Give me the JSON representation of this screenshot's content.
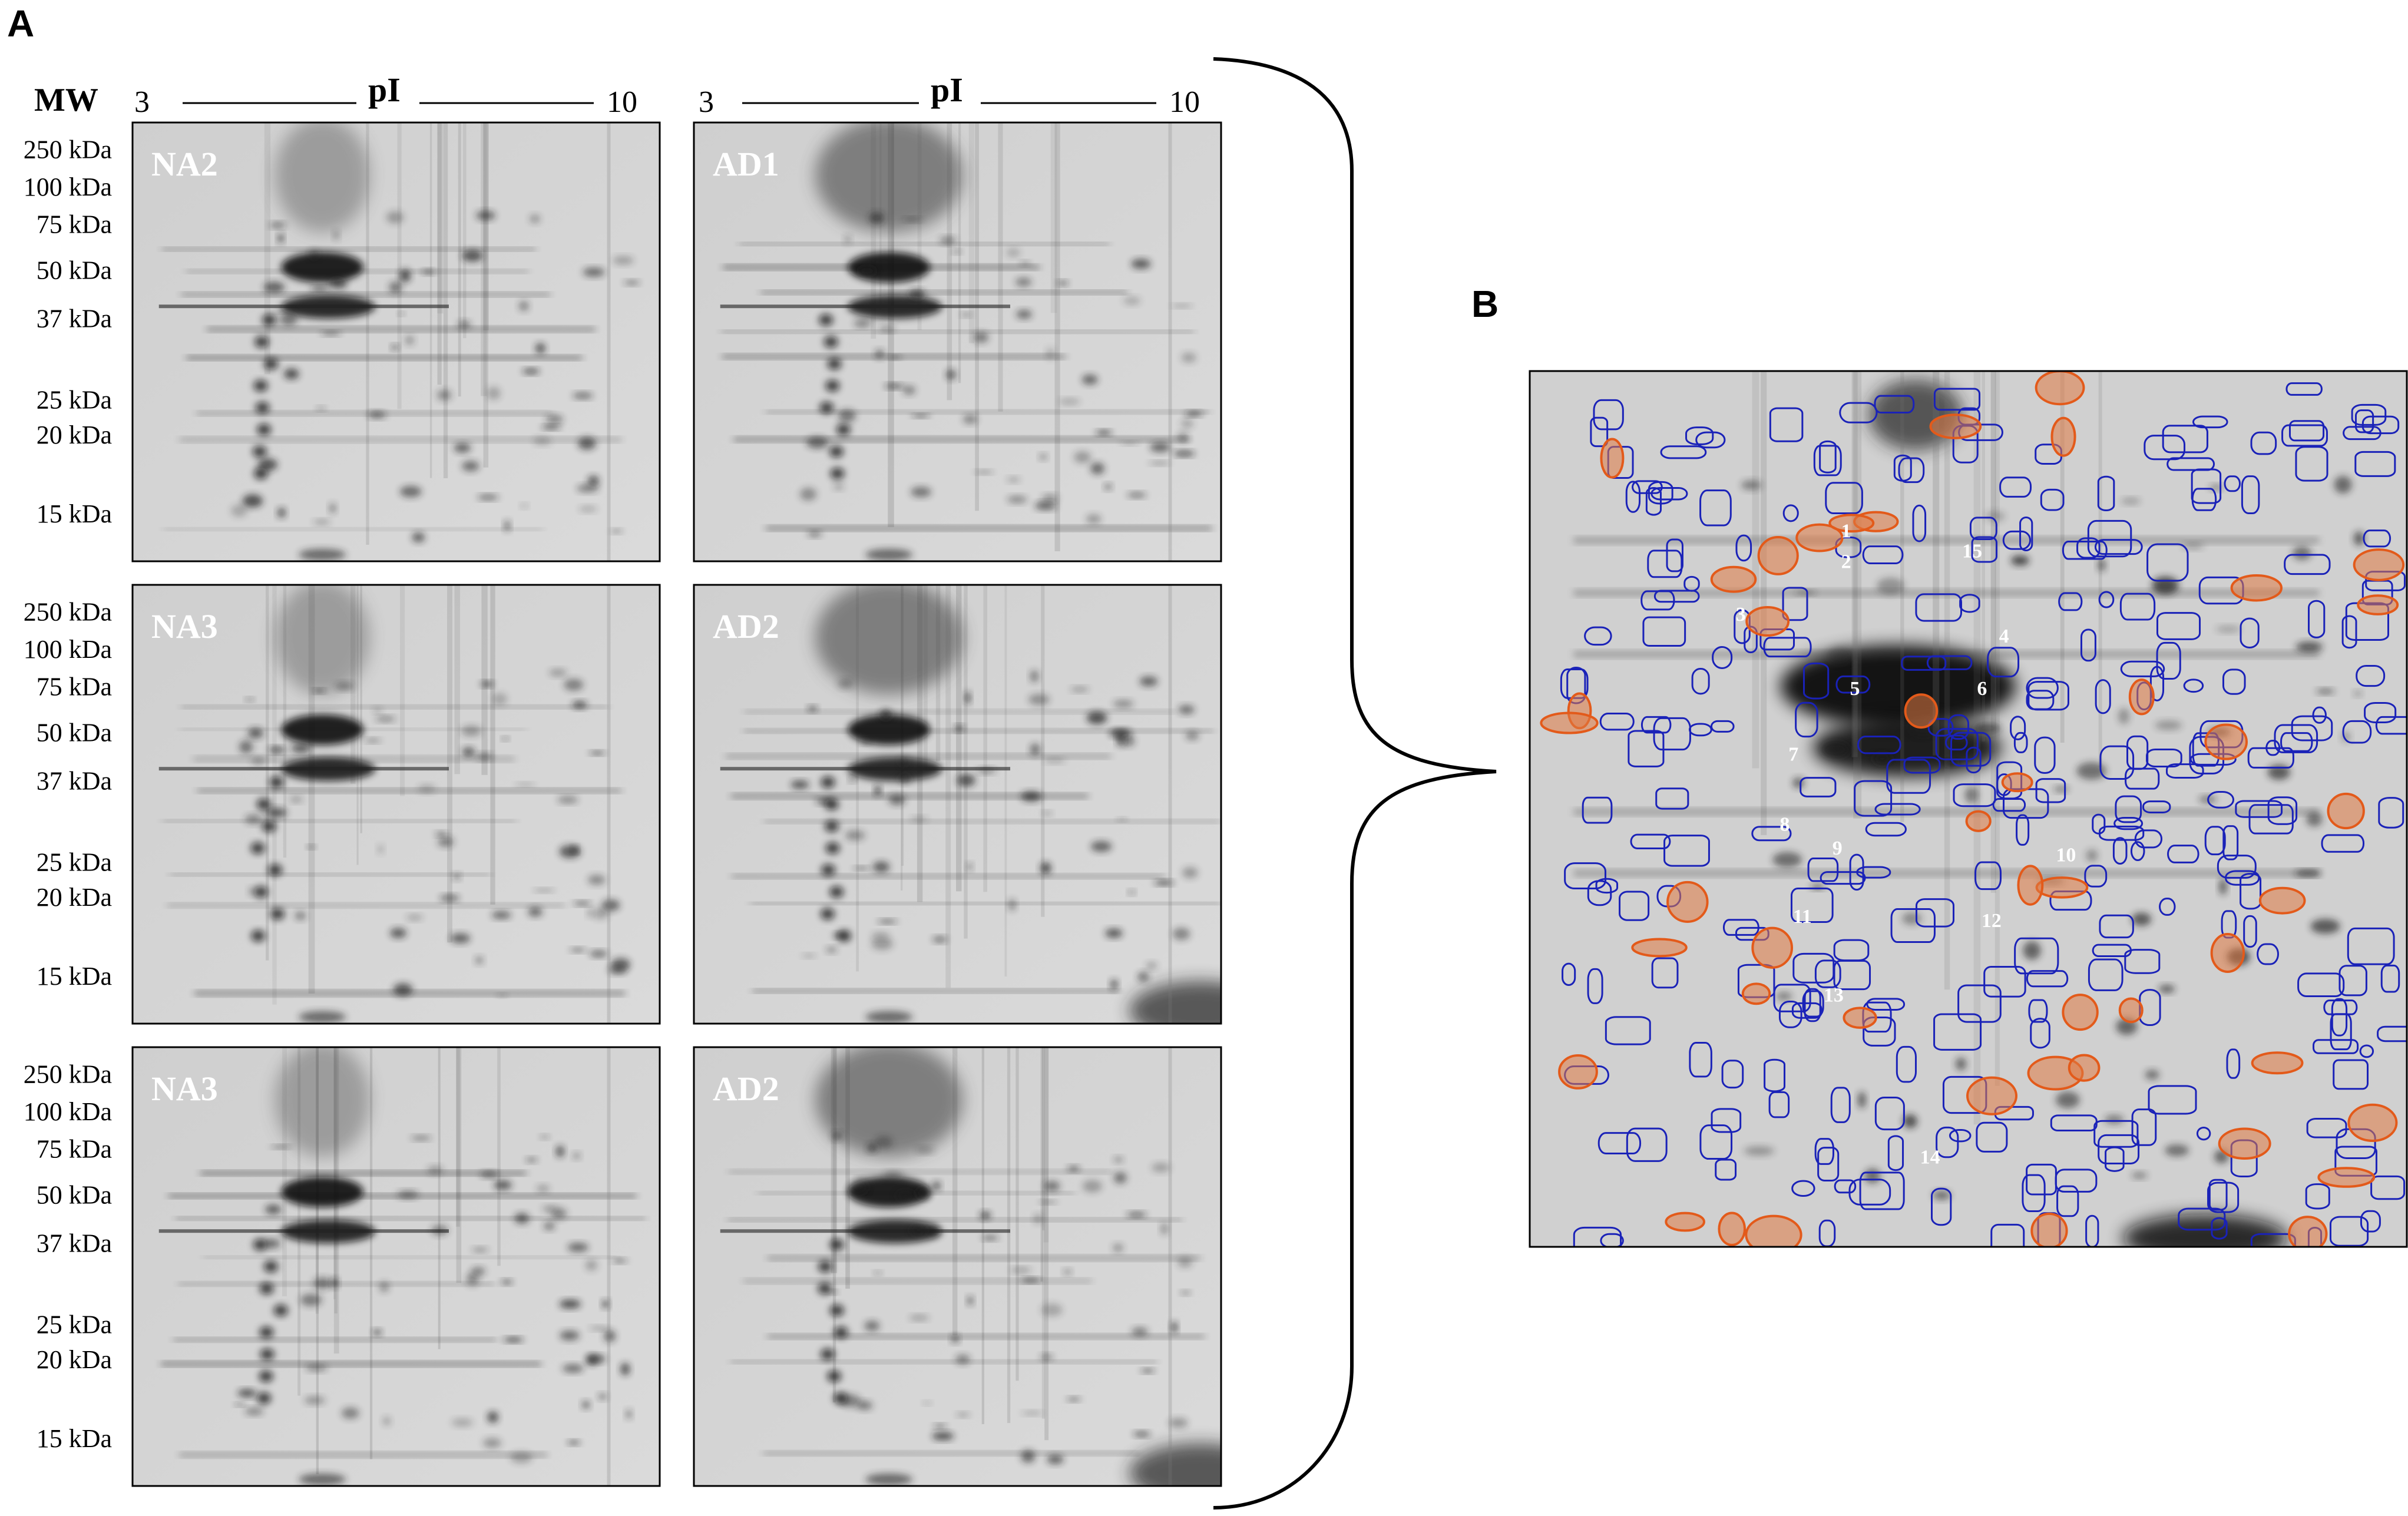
{
  "panel_a": {
    "letter": "A",
    "mw_label": "MW",
    "pi": {
      "label": "pI",
      "start": "3",
      "end": "10"
    },
    "mw_ticks": [
      "250 kDa",
      "100 kDa",
      "75 kDa",
      "50 kDa",
      "37 kDa",
      "25 kDa",
      "20 kDa",
      "15 kDa"
    ],
    "gel_labels": [
      [
        "NA2",
        "AD1"
      ],
      [
        "NA3",
        "AD2"
      ],
      [
        "NA3",
        "AD2"
      ]
    ]
  },
  "panel_b": {
    "letter": "B",
    "spot_numbers": [
      "1",
      "2",
      "3",
      "4",
      "5",
      "6",
      "7",
      "8",
      "9",
      "10",
      "11",
      "12",
      "13",
      "14",
      "15"
    ]
  }
}
